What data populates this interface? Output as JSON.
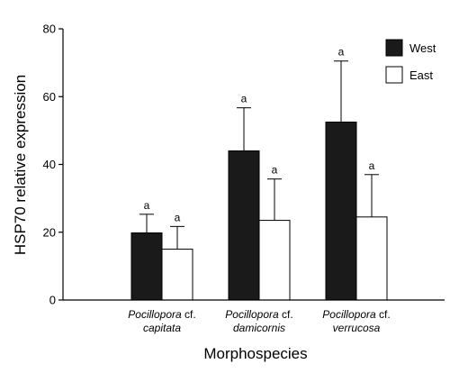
{
  "chart_data": {
    "type": "bar",
    "title": "",
    "xlabel": "Morphospecies",
    "ylabel": "HSP70 relative expression",
    "ylim": [
      0,
      80
    ],
    "yticks": [
      0,
      20,
      40,
      60,
      80
    ],
    "grid": false,
    "legend_position": "top-right",
    "categories": [
      {
        "genus": "Pocillopora",
        "qualifier": "cf.",
        "species": "capitata"
      },
      {
        "genus": "Pocillopora",
        "qualifier": "cf.",
        "species": "damicornis"
      },
      {
        "genus": "Pocillopora",
        "qualifier": "cf.",
        "species": "verrucosa"
      }
    ],
    "series": [
      {
        "name": "West",
        "color": "#1a1a1a",
        "values": [
          19.8,
          44.0,
          52.5
        ],
        "error": [
          5.5,
          12.7,
          18.0
        ],
        "labels": [
          "a",
          "a",
          "a"
        ]
      },
      {
        "name": "East",
        "color": "#ffffff",
        "values": [
          15.0,
          23.5,
          24.5
        ],
        "error": [
          6.7,
          12.2,
          12.5
        ],
        "labels": [
          "a",
          "a",
          "a"
        ]
      }
    ]
  }
}
